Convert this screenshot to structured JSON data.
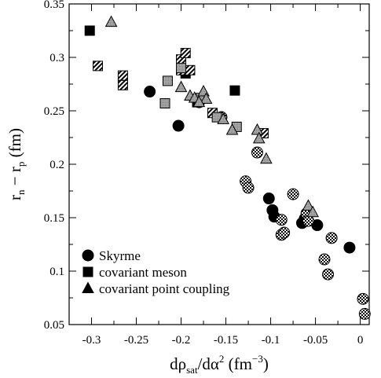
{
  "chart_data": {
    "type": "scatter",
    "xlabel": {
      "main": "dρ",
      "sub": "sat",
      "rest": "/dα",
      "sup": "2",
      "unit": " (fm",
      "unit_sup": "−3",
      "close": ")"
    },
    "ylabel": {
      "main": "r",
      "sub1": "n",
      "mid": " − r",
      "sub2": "p",
      "unit": " (fm)"
    },
    "xlim": [
      -0.325,
      0.01
    ],
    "ylim": [
      0.05,
      0.35
    ],
    "x_ticks": [
      -0.3,
      -0.25,
      -0.2,
      -0.15,
      -0.1,
      -0.05,
      0
    ],
    "x_tick_labels": [
      "-0.3",
      "-0.25",
      "-0.2",
      "-0.15",
      "-0.1",
      "-0.05",
      "0"
    ],
    "y_ticks": [
      0.05,
      0.1,
      0.15,
      0.2,
      0.25,
      0.3,
      0.35
    ],
    "y_tick_labels": [
      "0.05",
      "0.1",
      "0.15",
      "0.2",
      "0.25",
      "0.3",
      "0.35"
    ],
    "grid": false,
    "legend_position": "bottom-left",
    "series": [
      {
        "name": "Skyrme",
        "marker": "circle",
        "fill": "black",
        "points": [
          [
            -0.235,
            0.268
          ],
          [
            -0.203,
            0.236
          ],
          [
            -0.18,
            0.258
          ],
          [
            -0.155,
            0.244
          ],
          [
            -0.102,
            0.168
          ],
          [
            -0.098,
            0.157
          ],
          [
            -0.096,
            0.151
          ],
          [
            -0.065,
            0.145
          ],
          [
            -0.062,
            0.149
          ],
          [
            -0.048,
            0.143
          ],
          [
            -0.012,
            0.122
          ]
        ]
      },
      {
        "name": "",
        "marker": "circle",
        "fill": "checker",
        "points": [
          [
            -0.155,
            0.244
          ],
          [
            -0.115,
            0.211
          ],
          [
            -0.128,
            0.184
          ],
          [
            -0.125,
            0.178
          ],
          [
            -0.088,
            0.148
          ],
          [
            -0.088,
            0.134
          ],
          [
            -0.085,
            0.136
          ],
          [
            -0.075,
            0.172
          ],
          [
            -0.06,
            0.154
          ],
          [
            -0.058,
            0.147
          ],
          [
            -0.032,
            0.131
          ],
          [
            -0.04,
            0.111
          ],
          [
            -0.036,
            0.097
          ],
          [
            0.003,
            0.074
          ],
          [
            0.005,
            0.06
          ]
        ]
      },
      {
        "name": "covariant meson",
        "marker": "square",
        "fill": "black",
        "points": [
          [
            -0.302,
            0.325
          ],
          [
            -0.195,
            0.285
          ],
          [
            -0.14,
            0.269
          ],
          [
            -0.182,
            0.258
          ]
        ]
      },
      {
        "name": "",
        "marker": "square",
        "fill": "hatched",
        "points": [
          [
            -0.293,
            0.292
          ],
          [
            -0.265,
            0.283
          ],
          [
            -0.265,
            0.274
          ],
          [
            -0.2,
            0.298
          ],
          [
            -0.195,
            0.304
          ],
          [
            -0.2,
            0.288
          ],
          [
            -0.19,
            0.288
          ],
          [
            -0.165,
            0.248
          ],
          [
            -0.108,
            0.229
          ]
        ]
      },
      {
        "name": "",
        "marker": "square",
        "fill": "gray",
        "points": [
          [
            -0.215,
            0.278
          ],
          [
            -0.218,
            0.257
          ],
          [
            -0.2,
            0.29
          ],
          [
            -0.178,
            0.262
          ],
          [
            -0.16,
            0.244
          ],
          [
            -0.138,
            0.235
          ]
        ]
      },
      {
        "name": "covariant point coupling",
        "marker": "triangle",
        "fill": "gray",
        "points": [
          [
            -0.278,
            0.333
          ],
          [
            -0.2,
            0.272
          ],
          [
            -0.19,
            0.264
          ],
          [
            -0.185,
            0.262
          ],
          [
            -0.175,
            0.268
          ],
          [
            -0.172,
            0.261
          ],
          [
            -0.18,
            0.258
          ],
          [
            -0.153,
            0.242
          ],
          [
            -0.143,
            0.232
          ],
          [
            -0.115,
            0.232
          ],
          [
            -0.113,
            0.224
          ],
          [
            -0.105,
            0.205
          ],
          [
            -0.058,
            0.161
          ],
          [
            -0.053,
            0.155
          ]
        ]
      }
    ],
    "legend": [
      {
        "label": "Skyrme",
        "marker": "circle"
      },
      {
        "label": "covariant meson",
        "marker": "square"
      },
      {
        "label": "covariant point coupling",
        "marker": "triangle"
      }
    ]
  }
}
